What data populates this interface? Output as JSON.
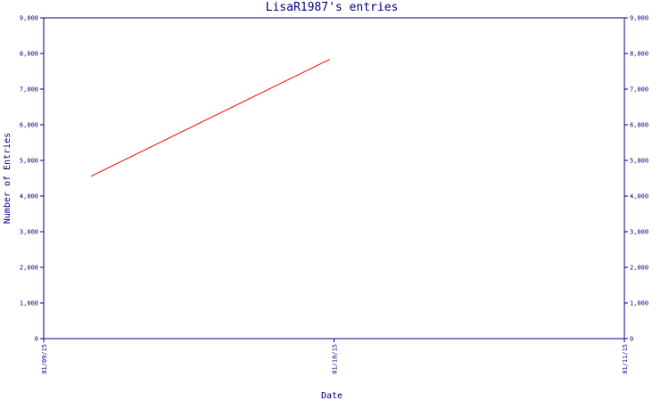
{
  "chart_data": {
    "type": "line",
    "title": "LisaR1987's entries",
    "xlabel": "Date",
    "ylabel": "Number of Entries",
    "x_ticks": [
      "01/09/15",
      "01/10/15",
      "01/11/15"
    ],
    "y_ticks": [
      "0",
      "1,000",
      "2,000",
      "3,000",
      "4,000",
      "5,000",
      "6,000",
      "7,000",
      "8,000",
      "9,000"
    ],
    "ylim": [
      0,
      9000
    ],
    "xlim": [
      "2015-09-01",
      "2015-11-01"
    ],
    "grid": false,
    "series": [
      {
        "color": "#ff0000",
        "points": [
          {
            "x": "2015-09-06",
            "y": 4560
          },
          {
            "x": "2015-10-01",
            "y": 7830
          }
        ]
      }
    ]
  }
}
